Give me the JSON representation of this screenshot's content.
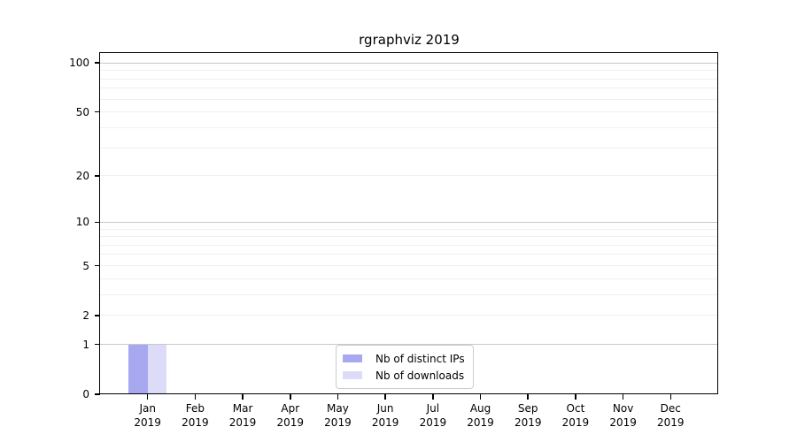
{
  "colors": {
    "grid_major": "#c9c9c9",
    "grid_minor": "#f0f0f0",
    "spine": "#000000",
    "legend_border": "#cccccc",
    "background": "#ffffff"
  },
  "chart_data": {
    "type": "bar",
    "title": "rgraphviz 2019",
    "xlabel": "",
    "ylabel": "",
    "yscale": "log1p",
    "ylim": [
      0,
      115
    ],
    "grid": true,
    "legend_position": "lower center",
    "categories": [
      {
        "month": "Jan",
        "year": "2019"
      },
      {
        "month": "Feb",
        "year": "2019"
      },
      {
        "month": "Mar",
        "year": "2019"
      },
      {
        "month": "Apr",
        "year": "2019"
      },
      {
        "month": "May",
        "year": "2019"
      },
      {
        "month": "Jun",
        "year": "2019"
      },
      {
        "month": "Jul",
        "year": "2019"
      },
      {
        "month": "Aug",
        "year": "2019"
      },
      {
        "month": "Sep",
        "year": "2019"
      },
      {
        "month": "Oct",
        "year": "2019"
      },
      {
        "month": "Nov",
        "year": "2019"
      },
      {
        "month": "Dec",
        "year": "2019"
      }
    ],
    "y_major_ticks": [
      0,
      1,
      2,
      5,
      10,
      20,
      50,
      100
    ],
    "y_gridlines_major": [
      1,
      10,
      100
    ],
    "y_gridlines_minor": [
      2,
      3,
      4,
      5,
      6,
      7,
      8,
      9,
      20,
      30,
      40,
      50,
      60,
      70,
      80,
      90
    ],
    "series": [
      {
        "name": "Nb of distinct IPs",
        "color": "#a8a8f0",
        "values": [
          1,
          0,
          0,
          0,
          0,
          0,
          0,
          0,
          0,
          0,
          0,
          0
        ]
      },
      {
        "name": "Nb of downloads",
        "color": "#dcdcf8",
        "values": [
          1,
          0,
          0,
          0,
          0,
          0,
          0,
          0,
          0,
          0,
          0,
          0
        ]
      }
    ]
  }
}
